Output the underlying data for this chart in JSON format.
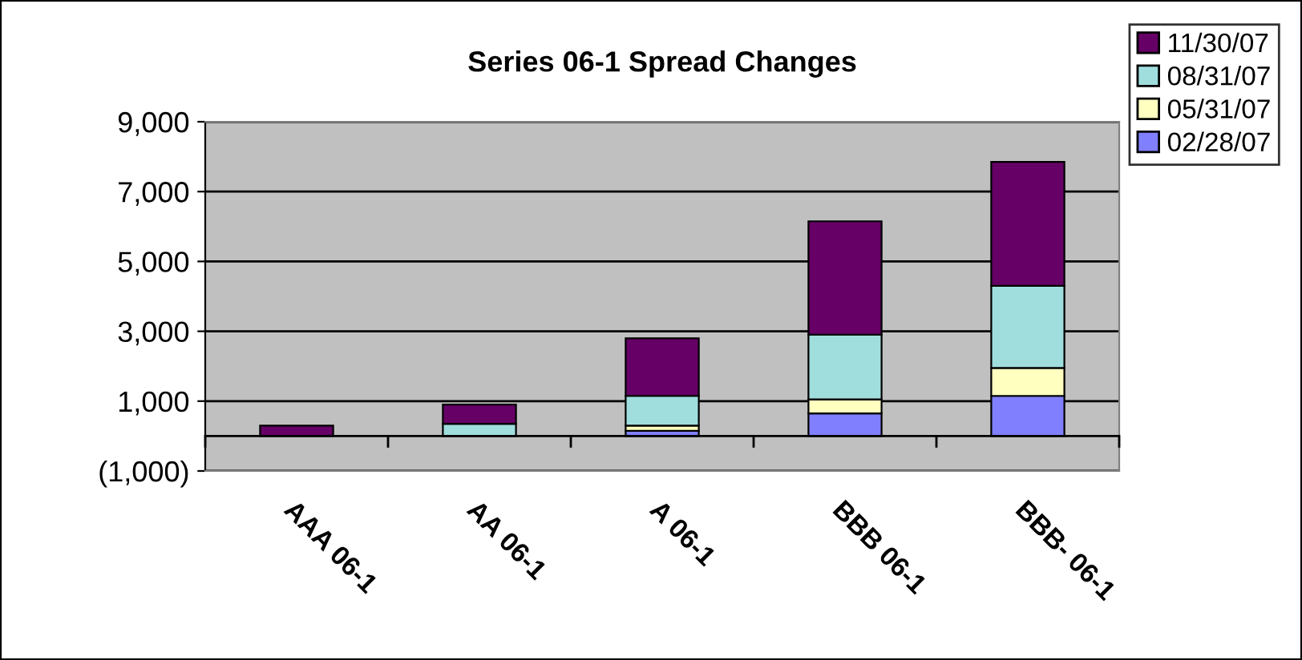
{
  "chart_data": {
    "type": "bar",
    "title": "Series 06-1 Spread Changes",
    "stacked": true,
    "categories": [
      "AAA 06-1",
      "AA 06-1",
      "A 06-1",
      "BBB 06-1",
      "BBB- 06-1"
    ],
    "series": [
      {
        "name": "02/28/07",
        "color": "#8080ff",
        "values": [
          null,
          null,
          150,
          650,
          1150
        ]
      },
      {
        "name": "05/31/07",
        "color": "#ffffc0",
        "values": [
          null,
          null,
          150,
          400,
          800
        ]
      },
      {
        "name": "08/31/07",
        "color": "#a0dede",
        "values": [
          null,
          350,
          850,
          1850,
          2350
        ]
      },
      {
        "name": "11/30/07",
        "color": "#660066",
        "values": [
          300,
          550,
          1650,
          3250,
          3550
        ]
      }
    ],
    "ylim": [
      -1000,
      9000
    ],
    "yticks": [
      {
        "value": -1000,
        "label": "(1,000)"
      },
      {
        "value": 1000,
        "label": "1,000"
      },
      {
        "value": 3000,
        "label": "3,000"
      },
      {
        "value": 5000,
        "label": "5,000"
      },
      {
        "value": 7000,
        "label": "7,000"
      },
      {
        "value": 9000,
        "label": "9,000"
      }
    ],
    "grid": "y",
    "legend": "top right"
  }
}
